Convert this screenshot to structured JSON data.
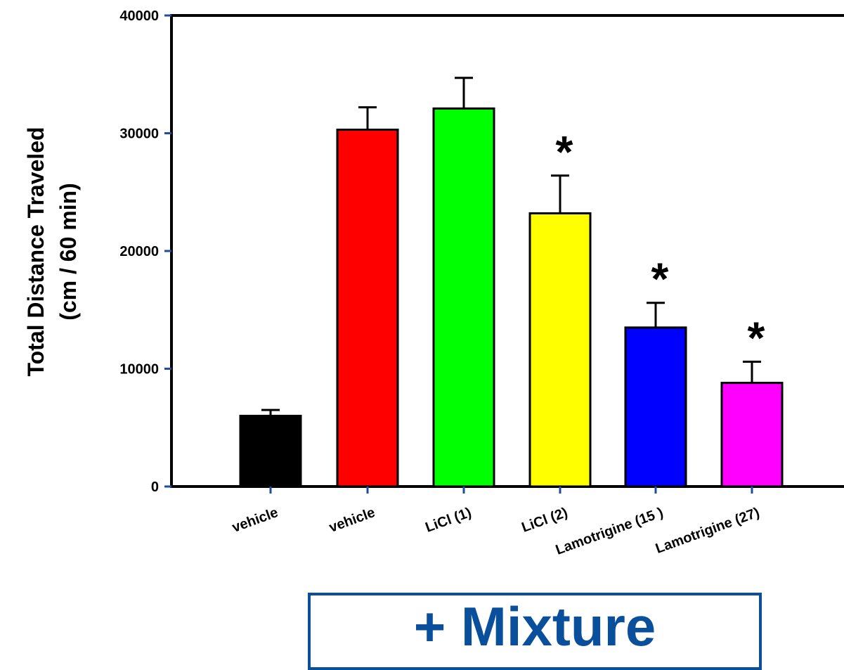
{
  "chart_data": {
    "type": "bar",
    "categories": [
      "vehicle",
      "vehicle",
      "LiCl (1)",
      "LiCl (2)",
      "Lamotrigine (15 )",
      "Lamotrigine (27)"
    ],
    "values": [
      6000,
      30300,
      32100,
      23200,
      13500,
      8800
    ],
    "errors": [
      500,
      1900,
      2600,
      3200,
      2100,
      1800
    ],
    "significant": [
      false,
      false,
      false,
      true,
      true,
      true
    ],
    "significance_marker": "*",
    "colors": [
      "#000000",
      "#ff0000",
      "#00ff00",
      "#ffff00",
      "#0000ff",
      "#ff00ff"
    ],
    "ylabel_line1": "Total Distance Traveled",
    "ylabel_line2": "(cm / 60 min)",
    "ylim": [
      0,
      40000
    ],
    "yticks": [
      "0",
      "10000",
      "20000",
      "30000",
      "40000"
    ],
    "yticks_values": [
      0,
      10000,
      20000,
      30000,
      40000
    ],
    "group_label": "+ Mixture",
    "grid": false
  }
}
